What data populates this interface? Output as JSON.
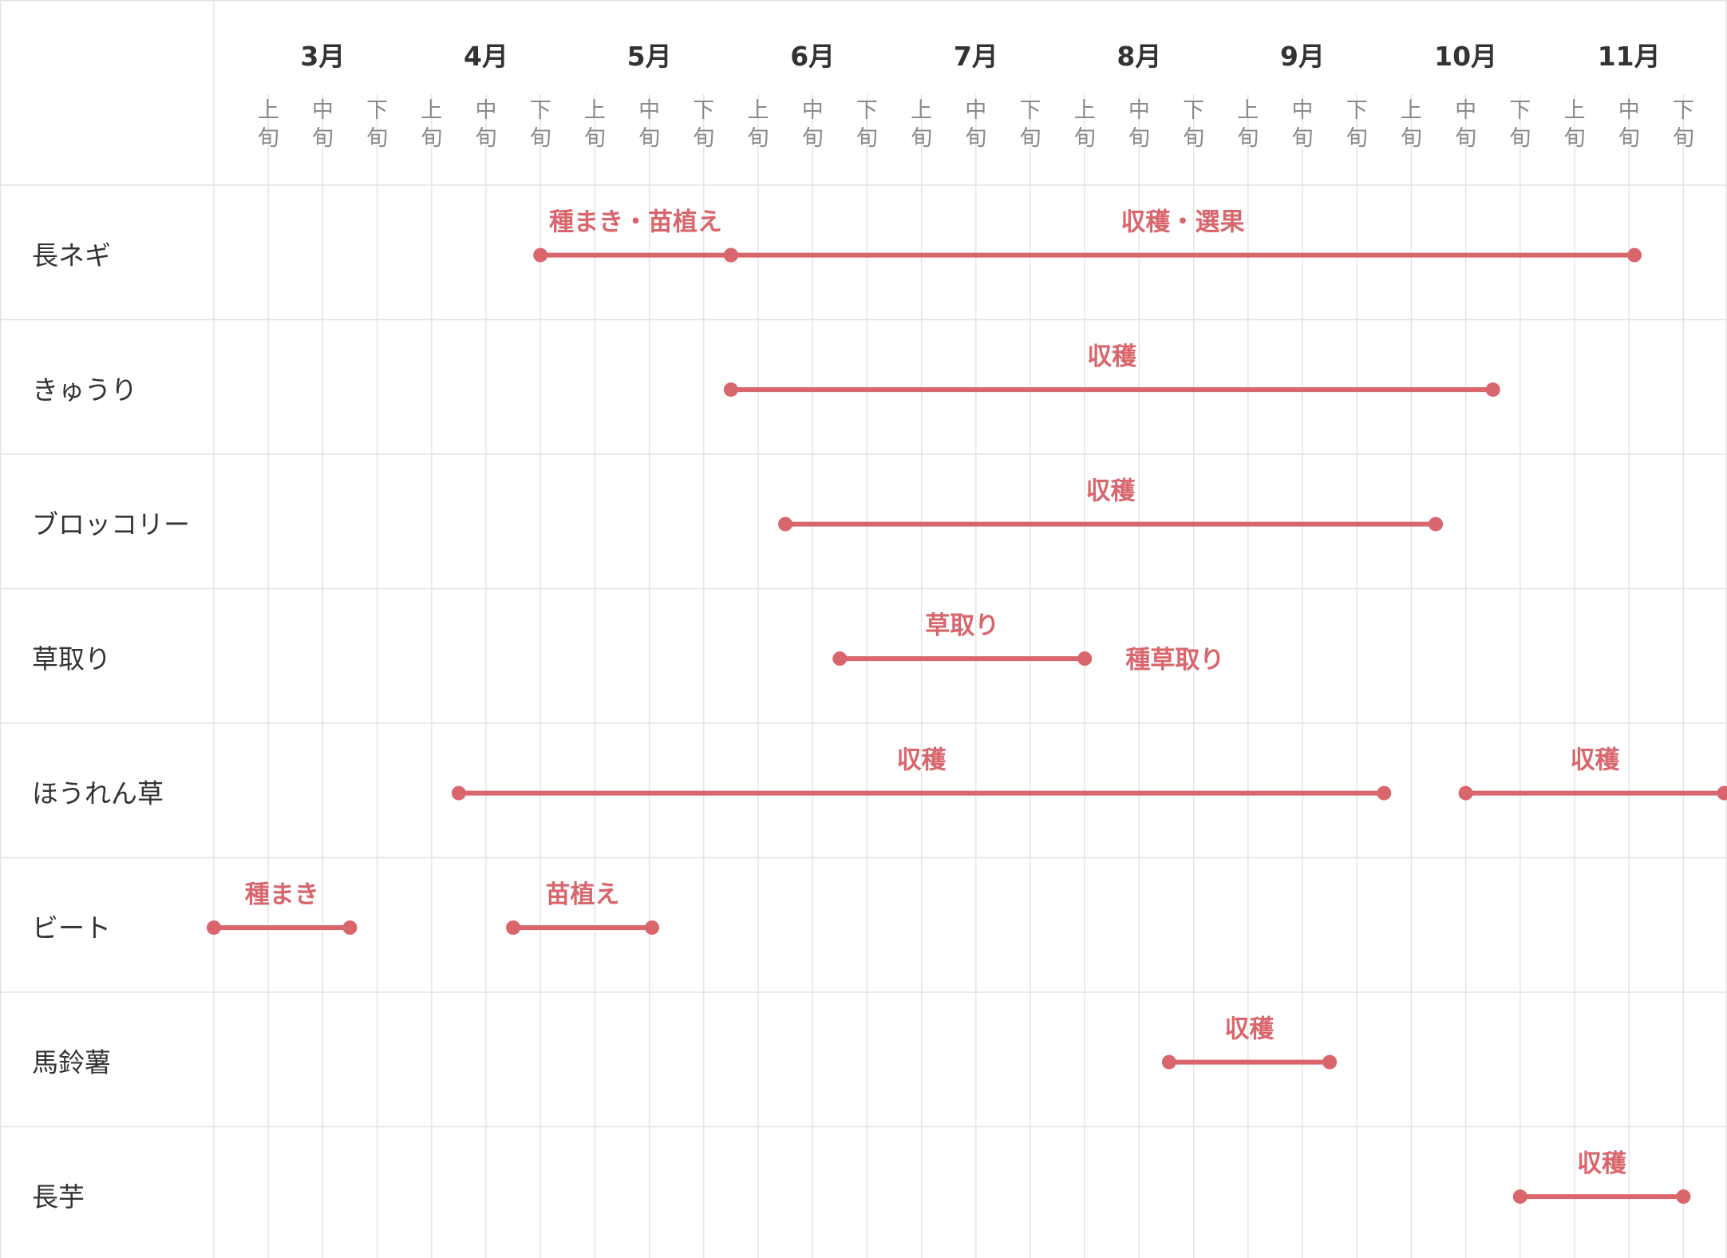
{
  "chart_data": {
    "type": "gantt",
    "months": [
      "3月",
      "4月",
      "5月",
      "6月",
      "7月",
      "8月",
      "9月",
      "10月",
      "11月"
    ],
    "periods": [
      {
        "top": "上",
        "bottom": "旬"
      },
      {
        "top": "中",
        "bottom": "旬"
      },
      {
        "top": "下",
        "bottom": "旬"
      }
    ],
    "accent_color": "#d9666c",
    "rows": [
      {
        "name": "長ネギ",
        "bars": [
          {
            "start": 6,
            "end": 9.5,
            "label": "種まき・苗植え"
          },
          {
            "start": 9.5,
            "end": 26.1,
            "label": "収穫・選果"
          }
        ]
      },
      {
        "name": "きゅうり",
        "bars": [
          {
            "start": 9.5,
            "end": 23.5,
            "label": "収穫"
          }
        ]
      },
      {
        "name": "ブロッコリー",
        "bars": [
          {
            "start": 10.5,
            "end": 22.45,
            "label": "収穫"
          }
        ]
      },
      {
        "name": "草取り",
        "bars": [
          {
            "start": 11.5,
            "end": 16,
            "label": "草取り"
          }
        ],
        "notes": [
          {
            "x": 16.75,
            "label": "種草取り"
          }
        ]
      },
      {
        "name": "ほうれん草",
        "bars": [
          {
            "start": 4.5,
            "end": 21.5,
            "label": "収穫"
          },
          {
            "start": 23,
            "end": 27.75,
            "label": "収穫"
          }
        ]
      },
      {
        "name": "ビート",
        "bars": [
          {
            "start": 0,
            "end": 2.5,
            "label": "種まき"
          },
          {
            "start": 5.5,
            "end": 8.05,
            "label": "苗植え"
          }
        ]
      },
      {
        "name": "馬鈴薯",
        "bars": [
          {
            "start": 17.55,
            "end": 20.5,
            "label": "収穫"
          }
        ]
      },
      {
        "name": "長芋",
        "bars": [
          {
            "start": 24,
            "end": 27,
            "label": "収穫"
          }
        ]
      }
    ]
  }
}
